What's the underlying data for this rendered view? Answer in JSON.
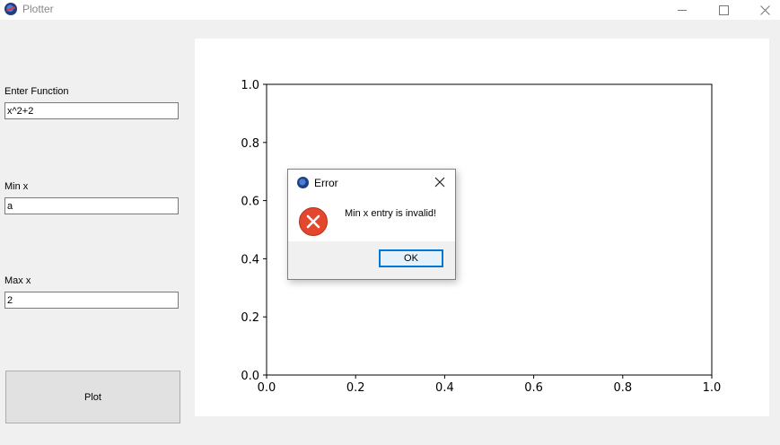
{
  "window": {
    "title": "Plotter",
    "icon": "app-logo-icon",
    "controls": [
      "minimize-icon",
      "maximize-icon",
      "close-icon"
    ]
  },
  "form": {
    "function_label": "Enter Function",
    "function_value": "x^2+2",
    "minx_label": "Min x",
    "minx_value": "a",
    "maxx_label": "Max x",
    "maxx_value": "2",
    "plot_label": "Plot"
  },
  "chart_data": {
    "type": "line",
    "title": "",
    "xlabel": "",
    "ylabel": "",
    "xlim": [
      0,
      1
    ],
    "ylim": [
      0,
      1
    ],
    "grid": false,
    "x_ticks": [
      "0.0",
      "0.2",
      "0.4",
      "0.6",
      "0.8",
      "1.0"
    ],
    "y_ticks": [
      "0.0",
      "0.2",
      "0.4",
      "0.6",
      "0.8",
      "1.0"
    ],
    "series": []
  },
  "dialog": {
    "title": "Error",
    "icon": "error-icon",
    "message": "Min x entry is invalid!",
    "ok_label": "OK",
    "colors": {
      "error": "#e3472e",
      "ok_border": "#0078d7"
    }
  }
}
